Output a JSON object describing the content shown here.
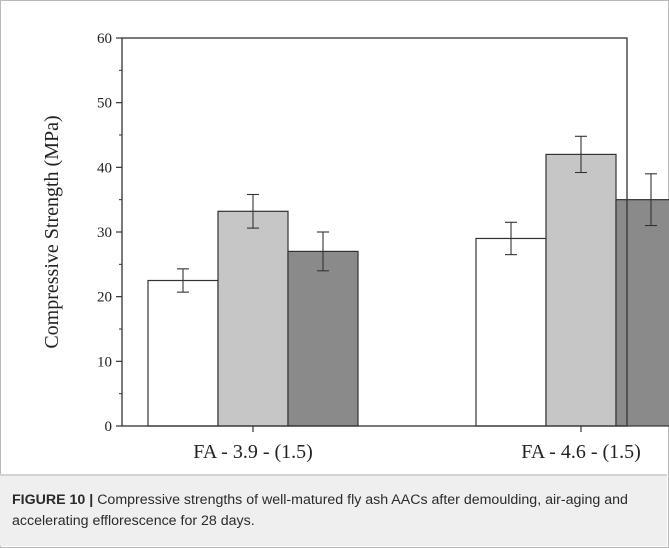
{
  "caption": {
    "label": "FIGURE 10 |",
    "text": "Compressive strengths of well-matured fly ash AACs after demoulding, air-aging and accelerating efflorescence for 28 days."
  },
  "chart_data": {
    "type": "bar",
    "title": "",
    "xlabel": "",
    "ylabel": "Compressive Strength (MPa)",
    "ylim": [
      0,
      60
    ],
    "yticks": [
      0,
      10,
      20,
      30,
      40,
      50,
      60
    ],
    "grid": false,
    "legend": "none",
    "categories": [
      "FA - 3.9 - (1.5)",
      "FA - 4.6 - (1.5)"
    ],
    "series": [
      {
        "values": [
          22.5,
          29.0
        ],
        "errors": [
          1.8,
          2.5
        ],
        "color": "#ffffff"
      },
      {
        "values": [
          33.2,
          42.0
        ],
        "errors": [
          2.6,
          2.8
        ],
        "color": "#c6c6c6"
      },
      {
        "values": [
          27.0,
          35.0
        ],
        "errors": [
          3.0,
          4.0
        ],
        "color": "#8a8a8a"
      }
    ]
  }
}
